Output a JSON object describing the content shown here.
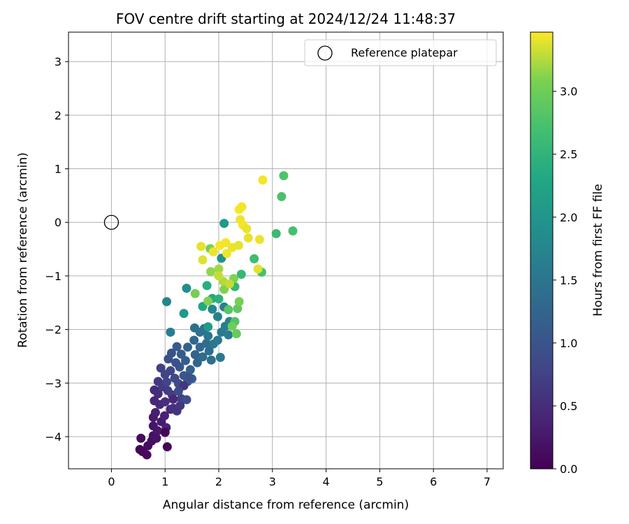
{
  "chart_data": {
    "type": "scatter",
    "title": "FOV centre drift starting at 2024/12/24 11:48:37",
    "xlabel": "Angular distance from reference (arcmin)",
    "ylabel": "Rotation from reference (arcmin)",
    "xlim": [
      -0.8,
      7.3
    ],
    "ylim": [
      -4.6,
      3.55
    ],
    "xticks": [
      0,
      1,
      2,
      3,
      4,
      5,
      6,
      7
    ],
    "yticks": [
      -4,
      -3,
      -2,
      -1,
      0,
      1,
      2,
      3
    ],
    "grid": true,
    "legend": {
      "position": "top-right",
      "entries": [
        {
          "label": "Reference platepar",
          "marker": "open-circle",
          "x": 0,
          "y": 0
        }
      ]
    },
    "colorbar": {
      "label": "Hours from first FF file",
      "colormap": "viridis",
      "range": [
        0.0,
        3.47
      ],
      "ticks": [
        "0.0",
        "0.5",
        "1.0",
        "1.5",
        "2.0",
        "2.5",
        "3.0"
      ]
    },
    "points": [
      [
        0.53,
        -4.24,
        0.02
      ],
      [
        0.58,
        -4.28,
        0.05
      ],
      [
        0.66,
        -4.34,
        0.08
      ],
      [
        0.55,
        -4.03,
        0.1
      ],
      [
        0.68,
        -4.17,
        0.12
      ],
      [
        0.75,
        -4.08,
        0.15
      ],
      [
        0.78,
        -3.98,
        0.18
      ],
      [
        0.84,
        -4.03,
        0.2
      ],
      [
        0.78,
        -3.8,
        0.22
      ],
      [
        0.86,
        -3.89,
        0.25
      ],
      [
        0.78,
        -3.64,
        0.28
      ],
      [
        0.93,
        -3.72,
        0.3
      ],
      [
        0.82,
        -3.55,
        0.33
      ],
      [
        1.02,
        -3.83,
        0.35
      ],
      [
        0.99,
        -3.61,
        0.38
      ],
      [
        1.04,
        -4.19,
        0.03
      ],
      [
        1.0,
        -3.92,
        0.06
      ],
      [
        1.1,
        -3.49,
        0.4
      ],
      [
        0.8,
        -3.33,
        0.42
      ],
      [
        0.9,
        -3.4,
        0.44
      ],
      [
        0.8,
        -3.13,
        0.47
      ],
      [
        0.87,
        -3.2,
        0.5
      ],
      [
        1.0,
        -3.35,
        0.52
      ],
      [
        1.15,
        -3.47,
        0.55
      ],
      [
        1.22,
        -3.52,
        0.57
      ],
      [
        1.28,
        -3.42,
        0.6
      ],
      [
        0.87,
        -2.97,
        0.62
      ],
      [
        0.95,
        -3.07,
        0.65
      ],
      [
        1.05,
        -3.14,
        0.67
      ],
      [
        1.13,
        -3.22,
        0.7
      ],
      [
        1.3,
        -3.29,
        0.72
      ],
      [
        0.92,
        -2.72,
        0.75
      ],
      [
        1.0,
        -2.84,
        0.78
      ],
      [
        1.03,
        -2.98,
        0.8
      ],
      [
        1.1,
        -2.77,
        0.82
      ],
      [
        1.18,
        -2.91,
        0.85
      ],
      [
        1.25,
        -3.01,
        0.88
      ],
      [
        1.4,
        -3.31,
        0.9
      ],
      [
        1.06,
        -2.55,
        0.93
      ],
      [
        1.12,
        -2.44,
        0.95
      ],
      [
        1.2,
        -2.62,
        0.98
      ],
      [
        1.27,
        -2.7,
        1.0
      ],
      [
        1.35,
        -2.86,
        1.03
      ],
      [
        1.42,
        -2.97,
        1.05
      ],
      [
        1.22,
        -2.32,
        1.08
      ],
      [
        1.3,
        -2.46,
        1.1
      ],
      [
        1.38,
        -2.58,
        1.13
      ],
      [
        1.47,
        -2.75,
        1.15
      ],
      [
        1.5,
        -2.92,
        1.18
      ],
      [
        1.42,
        -2.33,
        1.2
      ],
      [
        1.56,
        -2.47,
        1.22
      ],
      [
        1.6,
        -2.62,
        1.25
      ],
      [
        1.54,
        -2.2,
        1.28
      ],
      [
        1.65,
        -2.33,
        1.3
      ],
      [
        1.7,
        -2.51,
        1.33
      ],
      [
        1.77,
        -2.26,
        1.35
      ],
      [
        1.82,
        -2.4,
        1.38
      ],
      [
        1.86,
        -2.57,
        1.4
      ],
      [
        1.55,
        -1.97,
        1.42
      ],
      [
        1.65,
        -2.05,
        1.45
      ],
      [
        1.73,
        -1.98,
        1.47
      ],
      [
        1.8,
        -2.12,
        1.5
      ],
      [
        1.9,
        -2.27,
        1.52
      ],
      [
        1.98,
        -2.2,
        1.55
      ],
      [
        2.03,
        -2.52,
        1.57
      ],
      [
        2.05,
        -2.05,
        1.6
      ],
      [
        2.12,
        -1.94,
        1.62
      ],
      [
        2.18,
        -2.1,
        1.64
      ],
      [
        1.98,
        -1.76,
        1.66
      ],
      [
        2.1,
        -1.58,
        1.68
      ],
      [
        2.2,
        -1.85,
        1.7
      ],
      [
        1.1,
        -2.05,
        1.62
      ],
      [
        1.03,
        -1.48,
        1.72
      ],
      [
        1.4,
        -1.23,
        1.85
      ],
      [
        1.88,
        -1.62,
        1.74
      ],
      [
        1.35,
        -1.7,
        2.05
      ],
      [
        2.05,
        -0.67,
        1.95
      ],
      [
        2.1,
        -0.02,
        2.05
      ],
      [
        1.8,
        -1.95,
        2.1
      ],
      [
        1.7,
        -1.57,
        2.3
      ],
      [
        1.88,
        -1.42,
        2.35
      ],
      [
        1.78,
        -1.18,
        2.4
      ],
      [
        2.0,
        -1.43,
        2.45
      ],
      [
        2.3,
        -1.2,
        2.55
      ],
      [
        2.42,
        -0.97,
        2.55
      ],
      [
        2.66,
        -0.68,
        2.65
      ],
      [
        2.8,
        -0.93,
        2.7
      ],
      [
        3.07,
        -0.21,
        2.62
      ],
      [
        3.38,
        -0.16,
        2.7
      ],
      [
        3.17,
        0.48,
        2.75
      ],
      [
        3.21,
        0.87,
        2.78
      ],
      [
        2.3,
        -1.85,
        2.8
      ],
      [
        2.18,
        -1.63,
        2.85
      ],
      [
        2.35,
        -1.61,
        2.9
      ],
      [
        2.33,
        -2.08,
        2.95
      ],
      [
        2.25,
        -1.94,
        3.0
      ],
      [
        2.38,
        -1.48,
        3.05
      ],
      [
        2.1,
        -1.25,
        3.1
      ],
      [
        2.28,
        -1.05,
        3.1
      ],
      [
        1.85,
        -0.92,
        3.15
      ],
      [
        1.8,
        -1.47,
        3.1
      ],
      [
        1.56,
        -1.33,
        3.05
      ],
      [
        1.84,
        -0.49,
        3.05
      ],
      [
        2.0,
        -0.87,
        3.2
      ],
      [
        2.08,
        -1.1,
        3.25
      ],
      [
        2.2,
        -1.15,
        3.3
      ],
      [
        1.67,
        -0.45,
        3.4
      ],
      [
        1.7,
        -0.7,
        3.38
      ],
      [
        1.9,
        -0.55,
        3.42
      ],
      [
        2.02,
        -0.43,
        3.45
      ],
      [
        2.13,
        -0.38,
        3.44
      ],
      [
        2.15,
        -0.58,
        3.43
      ],
      [
        2.25,
        -0.47,
        3.41
      ],
      [
        2.37,
        -0.43,
        3.4
      ],
      [
        2.4,
        0.05,
        3.43
      ],
      [
        2.45,
        -0.05,
        3.44
      ],
      [
        2.52,
        -0.12,
        3.42
      ],
      [
        2.55,
        -0.29,
        3.4
      ],
      [
        2.38,
        0.24,
        3.45
      ],
      [
        2.43,
        0.29,
        3.44
      ],
      [
        2.73,
        -0.87,
        3.39
      ],
      [
        2.76,
        -0.32,
        3.42
      ],
      [
        2.82,
        0.79,
        3.44
      ],
      [
        2.0,
        -1.0,
        3.3
      ],
      [
        1.35,
        -3.05,
        0.6
      ],
      [
        1.45,
        -2.9,
        0.95
      ],
      [
        1.15,
        -3.3,
        0.45
      ],
      [
        1.25,
        -3.15,
        0.85
      ]
    ]
  }
}
